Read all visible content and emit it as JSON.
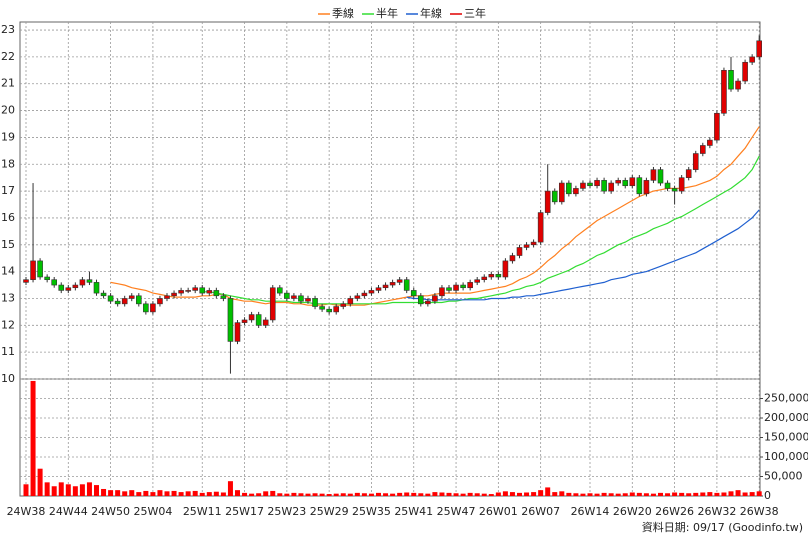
{
  "chart_data": {
    "type": "candlestick",
    "legend": "top",
    "grid": true,
    "source": "資料日期: 09/17 (Goodinfo.tw)",
    "up_color": "#e00000",
    "down_color": "#00c000",
    "categories": [
      "24W38",
      null,
      null,
      null,
      null,
      null,
      "24W44",
      null,
      null,
      null,
      null,
      null,
      "24W50",
      null,
      null,
      null,
      null,
      null,
      "25W04",
      null,
      null,
      null,
      null,
      null,
      null,
      "25W11",
      null,
      null,
      null,
      null,
      null,
      "25W17",
      null,
      null,
      null,
      null,
      null,
      "25W23",
      null,
      null,
      null,
      null,
      null,
      "25W29",
      null,
      null,
      null,
      null,
      null,
      "25W35",
      null,
      null,
      null,
      null,
      null,
      "25W41",
      null,
      null,
      null,
      null,
      null,
      "25W47",
      null,
      null,
      null,
      null,
      null,
      "26W01",
      null,
      null,
      null,
      null,
      null,
      "26W07",
      null,
      null,
      null,
      null,
      null,
      null,
      "26W14",
      null,
      null,
      null,
      null,
      null,
      "26W20",
      null,
      null,
      null,
      null,
      null,
      "26W26",
      null,
      null,
      null,
      null,
      null,
      "26W32",
      null,
      null,
      null,
      null,
      null,
      "26W38"
    ],
    "open": [
      13.6,
      13.7,
      14.4,
      13.8,
      13.7,
      13.5,
      13.3,
      13.4,
      13.5,
      13.7,
      13.6,
      13.2,
      13.1,
      12.9,
      12.8,
      13.0,
      13.1,
      12.8,
      12.5,
      12.8,
      13.0,
      13.1,
      13.2,
      13.3,
      13.3,
      13.4,
      13.2,
      13.3,
      13.1,
      13.0,
      11.4,
      12.1,
      12.2,
      12.4,
      12.0,
      12.2,
      13.4,
      13.2,
      13.0,
      13.1,
      12.9,
      13.0,
      12.7,
      12.6,
      12.5,
      12.7,
      12.8,
      13.0,
      13.1,
      13.2,
      13.3,
      13.4,
      13.5,
      13.6,
      13.7,
      13.3,
      13.1,
      12.8,
      12.9,
      13.1,
      13.4,
      13.3,
      13.5,
      13.4,
      13.6,
      13.7,
      13.8,
      13.9,
      13.8,
      14.4,
      14.6,
      14.9,
      15.0,
      15.1,
      16.2,
      17.0,
      16.6,
      17.3,
      16.9,
      17.1,
      17.3,
      17.2,
      17.4,
      17.0,
      17.3,
      17.4,
      17.2,
      17.5,
      16.9,
      17.4,
      17.8,
      17.3,
      17.1,
      17.0,
      17.5,
      17.8,
      18.4,
      18.7,
      18.9,
      19.9,
      21.5,
      20.8,
      21.1,
      21.8,
      22.0
    ],
    "high": [
      13.8,
      17.3,
      14.5,
      13.9,
      13.8,
      13.6,
      13.5,
      13.6,
      13.8,
      14.0,
      13.7,
      13.3,
      13.2,
      13.0,
      13.1,
      13.2,
      13.2,
      12.9,
      12.9,
      13.1,
      13.2,
      13.3,
      13.4,
      13.4,
      13.5,
      13.5,
      13.4,
      13.4,
      13.2,
      13.1,
      12.2,
      12.3,
      12.5,
      12.5,
      12.3,
      13.5,
      13.5,
      13.3,
      13.2,
      13.2,
      13.1,
      13.1,
      12.8,
      12.7,
      12.8,
      12.9,
      13.1,
      13.2,
      13.3,
      13.4,
      13.5,
      13.6,
      13.7,
      13.8,
      13.8,
      13.4,
      13.2,
      13.0,
      13.2,
      13.5,
      13.5,
      13.6,
      13.6,
      13.7,
      13.8,
      13.9,
      14.0,
      14.0,
      14.5,
      14.7,
      15.0,
      15.1,
      15.2,
      16.3,
      18.0,
      17.1,
      17.4,
      17.4,
      17.2,
      17.4,
      17.4,
      17.5,
      17.5,
      17.4,
      17.5,
      17.5,
      17.6,
      17.6,
      17.5,
      17.9,
      17.9,
      17.4,
      17.2,
      17.6,
      17.9,
      18.5,
      18.8,
      19.0,
      20.0,
      21.6,
      22.0,
      21.2,
      21.9,
      22.1,
      22.8
    ],
    "low": [
      13.5,
      13.6,
      13.7,
      13.6,
      13.4,
      13.2,
      13.2,
      13.3,
      13.4,
      13.5,
      13.1,
      13.0,
      12.8,
      12.7,
      12.7,
      12.9,
      12.7,
      12.4,
      12.4,
      12.7,
      12.9,
      13.0,
      13.1,
      13.2,
      13.2,
      13.1,
      13.1,
      13.0,
      12.9,
      10.2,
      11.3,
      12.0,
      12.1,
      11.9,
      11.9,
      12.1,
      13.1,
      12.9,
      12.9,
      12.8,
      12.8,
      12.6,
      12.5,
      12.4,
      12.4,
      12.6,
      12.7,
      12.9,
      13.0,
      13.1,
      13.2,
      13.3,
      13.4,
      13.5,
      13.2,
      13.0,
      12.7,
      12.7,
      12.8,
      13.0,
      13.2,
      13.2,
      13.3,
      13.3,
      13.5,
      13.6,
      13.7,
      13.7,
      13.7,
      14.3,
      14.5,
      14.8,
      14.9,
      15.0,
      16.1,
      16.5,
      16.5,
      16.8,
      16.8,
      17.0,
      17.1,
      17.1,
      16.9,
      16.9,
      17.2,
      17.1,
      17.1,
      16.8,
      16.8,
      17.3,
      17.2,
      17.0,
      16.5,
      16.9,
      17.4,
      17.7,
      18.3,
      18.6,
      18.8,
      19.8,
      20.7,
      20.7,
      21.0,
      21.7,
      21.9
    ],
    "close": [
      13.7,
      14.4,
      13.8,
      13.7,
      13.5,
      13.3,
      13.4,
      13.5,
      13.7,
      13.6,
      13.2,
      13.1,
      12.9,
      12.8,
      13.0,
      13.1,
      12.8,
      12.5,
      12.8,
      13.0,
      13.1,
      13.2,
      13.3,
      13.3,
      13.4,
      13.2,
      13.3,
      13.1,
      13.0,
      11.4,
      12.1,
      12.2,
      12.4,
      12.0,
      12.2,
      13.4,
      13.2,
      13.0,
      13.1,
      12.9,
      13.0,
      12.7,
      12.6,
      12.5,
      12.7,
      12.8,
      13.0,
      13.1,
      13.2,
      13.3,
      13.4,
      13.5,
      13.6,
      13.7,
      13.3,
      13.1,
      12.8,
      12.9,
      13.1,
      13.4,
      13.3,
      13.5,
      13.4,
      13.6,
      13.7,
      13.8,
      13.9,
      13.8,
      14.4,
      14.6,
      14.9,
      15.0,
      15.1,
      16.2,
      17.0,
      16.6,
      17.3,
      16.9,
      17.1,
      17.3,
      17.2,
      17.4,
      17.0,
      17.3,
      17.4,
      17.2,
      17.5,
      16.9,
      17.4,
      17.8,
      17.3,
      17.1,
      17.0,
      17.5,
      17.8,
      18.4,
      18.7,
      18.9,
      19.9,
      21.5,
      20.8,
      21.1,
      21.8,
      22.0,
      22.6
    ],
    "ylim": [
      10,
      23.3
    ],
    "yticks": [
      10,
      11,
      12,
      13,
      14,
      15,
      16,
      17,
      18,
      19,
      20,
      21,
      22,
      23
    ],
    "series": [
      {
        "name": "季線",
        "color": "#ff8020",
        "values": [
          null,
          null,
          null,
          null,
          null,
          null,
          null,
          null,
          null,
          null,
          null,
          null,
          13.6,
          13.55,
          13.5,
          13.4,
          13.35,
          13.3,
          13.2,
          13.15,
          13.1,
          13.05,
          13.05,
          13.05,
          13.05,
          13.1,
          13.1,
          13.15,
          13.15,
          13.0,
          12.95,
          12.9,
          12.9,
          12.85,
          12.8,
          12.85,
          12.85,
          12.85,
          12.8,
          12.8,
          12.75,
          12.75,
          12.75,
          12.8,
          12.75,
          12.75,
          12.75,
          12.75,
          12.75,
          12.8,
          12.85,
          12.9,
          12.95,
          13.0,
          13.05,
          13.1,
          13.1,
          13.1,
          13.15,
          13.2,
          13.2,
          13.2,
          13.2,
          13.2,
          13.25,
          13.3,
          13.35,
          13.4,
          13.45,
          13.55,
          13.7,
          13.8,
          13.95,
          14.15,
          14.4,
          14.6,
          14.85,
          15.05,
          15.3,
          15.5,
          15.7,
          15.9,
          16.05,
          16.2,
          16.35,
          16.5,
          16.65,
          16.8,
          16.9,
          17.0,
          17.05,
          17.1,
          17.1,
          17.1,
          17.15,
          17.2,
          17.3,
          17.4,
          17.55,
          17.8,
          18.0,
          18.3,
          18.6,
          19.0,
          19.4
        ]
      },
      {
        "name": "半年",
        "color": "#33dd33",
        "values": [
          null,
          null,
          null,
          null,
          null,
          null,
          null,
          null,
          null,
          null,
          null,
          null,
          null,
          null,
          null,
          null,
          null,
          null,
          null,
          null,
          null,
          null,
          null,
          null,
          null,
          13.25,
          13.25,
          13.2,
          13.15,
          13.1,
          13.05,
          13.0,
          12.95,
          12.95,
          12.9,
          12.9,
          12.9,
          12.9,
          12.85,
          12.85,
          12.85,
          12.8,
          12.8,
          12.8,
          12.8,
          12.8,
          12.8,
          12.8,
          12.8,
          12.8,
          12.8,
          12.8,
          12.85,
          12.85,
          12.85,
          12.85,
          12.85,
          12.85,
          12.85,
          12.85,
          12.9,
          12.9,
          12.95,
          13.0,
          13.0,
          13.05,
          13.1,
          13.15,
          13.2,
          13.3,
          13.35,
          13.45,
          13.5,
          13.6,
          13.75,
          13.85,
          13.95,
          14.05,
          14.2,
          14.3,
          14.45,
          14.6,
          14.7,
          14.85,
          15.0,
          15.1,
          15.25,
          15.35,
          15.45,
          15.6,
          15.7,
          15.8,
          15.95,
          16.05,
          16.2,
          16.35,
          16.5,
          16.65,
          16.8,
          16.95,
          17.1,
          17.3,
          17.5,
          17.8,
          18.3
        ]
      },
      {
        "name": "年線",
        "color": "#2060d0",
        "values": [
          null,
          null,
          null,
          null,
          null,
          null,
          null,
          null,
          null,
          null,
          null,
          null,
          null,
          null,
          null,
          null,
          null,
          null,
          null,
          null,
          null,
          null,
          null,
          null,
          null,
          null,
          null,
          null,
          null,
          null,
          null,
          null,
          null,
          null,
          null,
          null,
          null,
          null,
          null,
          null,
          null,
          null,
          null,
          null,
          null,
          null,
          null,
          null,
          null,
          null,
          null,
          null,
          null,
          null,
          13.05,
          13.0,
          13.0,
          12.95,
          12.95,
          12.95,
          12.95,
          12.95,
          12.95,
          12.95,
          12.95,
          12.95,
          13.0,
          13.0,
          13.0,
          13.05,
          13.05,
          13.1,
          13.1,
          13.15,
          13.2,
          13.25,
          13.3,
          13.35,
          13.4,
          13.45,
          13.5,
          13.55,
          13.6,
          13.7,
          13.75,
          13.8,
          13.9,
          13.95,
          14.0,
          14.1,
          14.2,
          14.3,
          14.4,
          14.5,
          14.6,
          14.7,
          14.85,
          15.0,
          15.15,
          15.3,
          15.45,
          15.6,
          15.8,
          16.0,
          16.3
        ]
      },
      {
        "name": "三年",
        "color": "#e00000"
      }
    ],
    "volume": {
      "color": "#ff0000",
      "ylim": [
        0,
        300000
      ],
      "yticks": [
        0,
        {
          "value": 50000,
          "label": "50,000"
        },
        {
          "value": 100000,
          "label": "100,000"
        },
        {
          "value": 150000,
          "label": "150,000"
        },
        {
          "value": 200000,
          "label": "200,000"
        },
        {
          "value": 250000,
          "label": "250,000"
        }
      ],
      "values": [
        30000,
        295000,
        70000,
        35000,
        25000,
        35000,
        30000,
        25000,
        30000,
        35000,
        28000,
        18000,
        15000,
        15000,
        12000,
        15000,
        10000,
        13000,
        10000,
        15000,
        12000,
        13000,
        10000,
        12000,
        13000,
        8000,
        10000,
        11000,
        9000,
        38000,
        15000,
        8000,
        6000,
        7000,
        12000,
        13000,
        7000,
        6000,
        8000,
        7000,
        6000,
        7000,
        6000,
        5000,
        6000,
        7000,
        6000,
        8000,
        7000,
        6000,
        8000,
        7000,
        6000,
        8000,
        9000,
        8000,
        7000,
        6000,
        10000,
        9000,
        8000,
        7000,
        6000,
        8000,
        7000,
        6000,
        5000,
        9000,
        12000,
        10000,
        8000,
        9000,
        10000,
        15000,
        22000,
        10000,
        12000,
        8000,
        7000,
        6000,
        7000,
        6000,
        8000,
        7000,
        6000,
        7000,
        9000,
        8000,
        7000,
        6000,
        8000,
        7000,
        9000,
        8000,
        7000,
        8000,
        9000,
        10000,
        8000,
        9000,
        12000,
        15000,
        9000,
        10000,
        12000
      ]
    }
  }
}
